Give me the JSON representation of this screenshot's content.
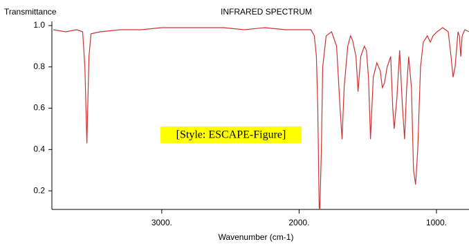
{
  "chart_data": {
    "type": "line",
    "title": "INFRARED SPECTRUM",
    "y_label": "Transmittance",
    "x_label": "Wavenumber (cm-1)",
    "annotation": "[Style: ESCAPE-Figure]",
    "xlim": [
      3800,
      763
    ],
    "ylim": [
      0.11,
      1.01
    ],
    "xticks": [
      {
        "value": 3000,
        "label": "3000."
      },
      {
        "value": 2000,
        "label": "2000."
      },
      {
        "value": 1000,
        "label": "1000."
      }
    ],
    "yticks": [
      0.2,
      0.4,
      0.6,
      0.8,
      {
        "value": 1,
        "label": "1.0"
      }
    ],
    "grid": false,
    "series": [
      {
        "color": "#cc3333",
        "x": [
          3790,
          3700,
          3620,
          3576,
          3560,
          3545,
          3530,
          3515,
          3450,
          3300,
          3150,
          3000,
          2850,
          2700,
          2550,
          2400,
          2250,
          2100,
          1965,
          1914,
          1889,
          1874,
          1864,
          1854,
          1849,
          1838,
          1828,
          1803,
          1763,
          1727,
          1702,
          1687,
          1672,
          1646,
          1626,
          1611,
          1586,
          1571,
          1551,
          1525,
          1510,
          1495,
          1480,
          1460,
          1434,
          1409,
          1394,
          1379,
          1359,
          1333,
          1318,
          1308,
          1288,
          1268,
          1247,
          1232,
          1217,
          1202,
          1182,
          1167,
          1152,
          1136,
          1116,
          1096,
          1066,
          1045,
          1025,
          995,
          955,
          914,
          894,
          879,
          864,
          843,
          833,
          823,
          813,
          793,
          763
        ],
        "values": [
          0.98,
          0.97,
          0.98,
          0.97,
          0.8,
          0.43,
          0.85,
          0.96,
          0.97,
          0.98,
          0.98,
          0.99,
          0.99,
          0.99,
          0.99,
          0.98,
          0.99,
          0.98,
          0.98,
          0.98,
          0.95,
          0.85,
          0.6,
          0.12,
          0.11,
          0.4,
          0.8,
          0.95,
          0.97,
          0.9,
          0.6,
          0.45,
          0.7,
          0.9,
          0.95,
          0.93,
          0.85,
          0.68,
          0.85,
          0.9,
          0.88,
          0.75,
          0.45,
          0.75,
          0.82,
          0.78,
          0.7,
          0.72,
          0.8,
          0.85,
          0.6,
          0.5,
          0.65,
          0.88,
          0.6,
          0.45,
          0.7,
          0.85,
          0.7,
          0.3,
          0.23,
          0.4,
          0.8,
          0.92,
          0.95,
          0.92,
          0.95,
          0.97,
          0.99,
          0.97,
          0.85,
          0.75,
          0.8,
          0.97,
          0.95,
          0.85,
          0.95,
          0.98,
          0.97
        ]
      }
    ]
  }
}
